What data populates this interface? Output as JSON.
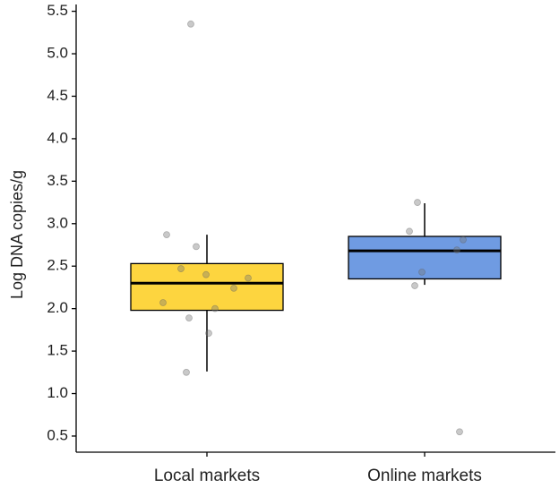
{
  "chart_data": {
    "type": "box",
    "y_label": "Log DNA copies/g",
    "categories": [
      "Local markets",
      "Online markets"
    ],
    "ylim": [
      0.31,
      5.58
    ],
    "yticks": [
      0.5,
      {
        "value": 1,
        "label": "1.0"
      },
      1.5,
      {
        "value": 2,
        "label": "2.0"
      },
      2.5,
      {
        "value": 3,
        "label": "3.0"
      },
      3.5,
      {
        "value": 4,
        "label": "4.0"
      },
      4.5,
      {
        "value": 5,
        "label": "5.0"
      },
      5.5
    ],
    "boxes": [
      {
        "color": "#fdd53f",
        "whisker_low": 1.26,
        "q1": 1.98,
        "median": 2.3,
        "q3": 2.53,
        "whisker_high": 2.87,
        "points": [
          2.87,
          2.73,
          2.47,
          2.4,
          2.36,
          2.24,
          2.07,
          2.0,
          1.89,
          1.71,
          1.25,
          5.35
        ]
      },
      {
        "color": "#6f9be2",
        "whisker_low": 2.28,
        "q1": 2.35,
        "median": 2.68,
        "q3": 2.85,
        "whisker_high": 3.24,
        "points": [
          3.25,
          2.91,
          2.81,
          2.69,
          2.43,
          2.27,
          0.55
        ]
      }
    ]
  }
}
